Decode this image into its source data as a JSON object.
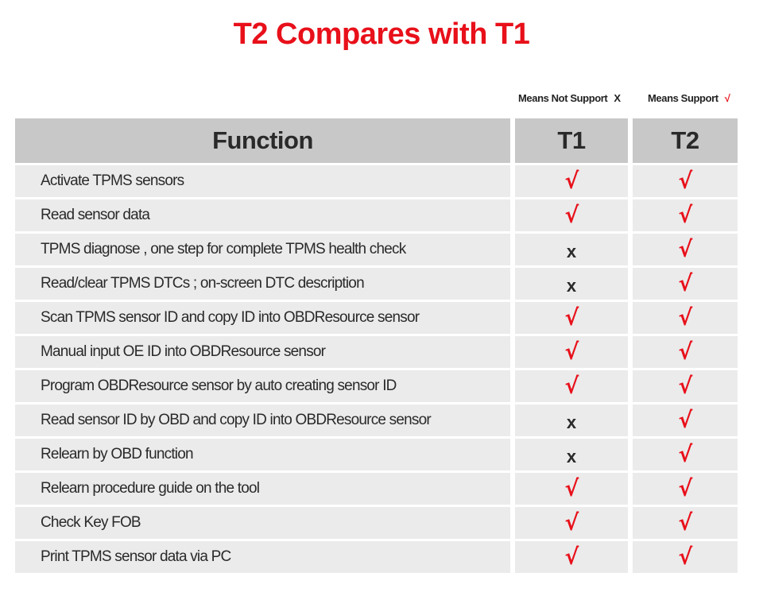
{
  "title": "T2 Compares with T1",
  "legend": {
    "not_support_label": "Means Not Support",
    "not_support_symbol": "X",
    "support_label": "Means Support",
    "support_symbol": "√"
  },
  "colors": {
    "accent_red": "#e8101a",
    "header_gray": "#c8c8c8",
    "row_gray": "#ebebeb",
    "text_dark": "#2a2a2a"
  },
  "table": {
    "headers": {
      "function": "Function",
      "t1": "T1",
      "t2": "T2"
    },
    "symbols": {
      "yes": "√",
      "no": "x"
    },
    "rows": [
      {
        "function": "Activate TPMS sensors",
        "t1": "yes",
        "t2": "yes"
      },
      {
        "function": "Read sensor data",
        "t1": "yes",
        "t2": "yes"
      },
      {
        "function": "TPMS diagnose , one step for complete TPMS health check",
        "t1": "no",
        "t2": "yes"
      },
      {
        "function": "Read/clear TPMS DTCs ; on-screen DTC description",
        "t1": "no",
        "t2": "yes"
      },
      {
        "function": "Scan TPMS sensor ID and copy ID into OBDResource sensor",
        "t1": "yes",
        "t2": "yes"
      },
      {
        "function": "Manual input OE ID into OBDResource sensor",
        "t1": "yes",
        "t2": "yes"
      },
      {
        "function": "Program OBDResource sensor by auto creating sensor ID",
        "t1": "yes",
        "t2": "yes"
      },
      {
        "function": "Read sensor ID by OBD and copy ID into OBDResource sensor",
        "t1": "no",
        "t2": "yes"
      },
      {
        "function": "Relearn by OBD function",
        "t1": "no",
        "t2": "yes"
      },
      {
        "function": "Relearn procedure guide on the tool",
        "t1": "yes",
        "t2": "yes"
      },
      {
        "function": "Check Key FOB",
        "t1": "yes",
        "t2": "yes"
      },
      {
        "function": "Print TPMS sensor data via PC",
        "t1": "yes",
        "t2": "yes"
      }
    ]
  }
}
